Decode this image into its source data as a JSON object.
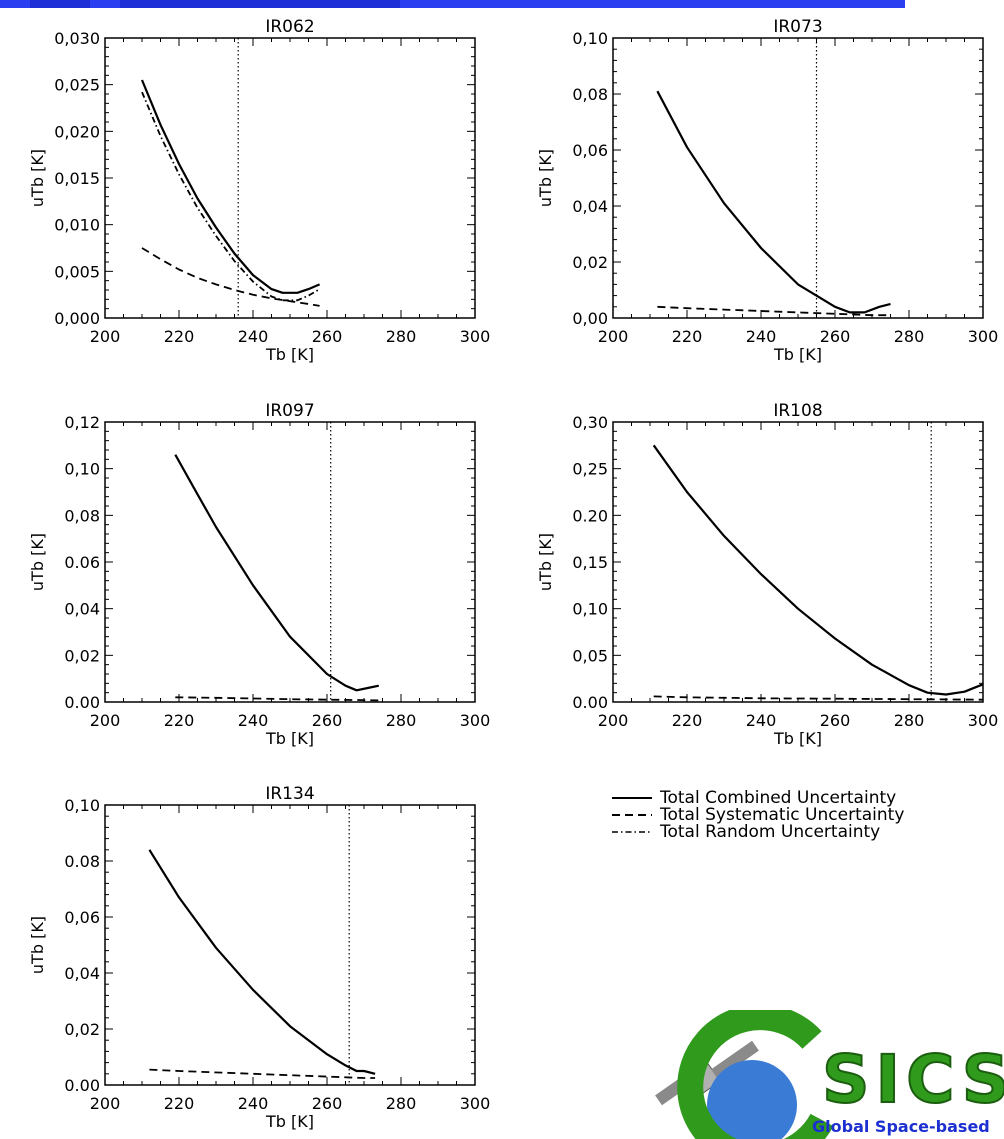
{
  "chart_data": [
    {
      "type": "line",
      "title": "IR062",
      "xlabel": "Tb [K]",
      "ylabel": "uTb [K]",
      "xlim": [
        200,
        300
      ],
      "ylim": [
        0,
        0.03
      ],
      "xticks": [
        "200",
        "220",
        "240",
        "260",
        "280",
        "300"
      ],
      "yticks": [
        "0,000",
        "0,005",
        "0,010",
        "0,015",
        "0,020",
        "0,025",
        "0,030"
      ],
      "vline": 236,
      "series": [
        {
          "style": "solid",
          "x": [
            210,
            215,
            220,
            225,
            230,
            235,
            240,
            245,
            248,
            252,
            255,
            258
          ],
          "y": [
            0.0255,
            0.0207,
            0.0165,
            0.0128,
            0.0097,
            0.0069,
            0.0046,
            0.0031,
            0.0027,
            0.0027,
            0.0031,
            0.0036
          ]
        },
        {
          "style": "dashed",
          "x": [
            210,
            215,
            220,
            225,
            230,
            235,
            240,
            245,
            250,
            255,
            258
          ],
          "y": [
            0.0075,
            0.0063,
            0.0052,
            0.0043,
            0.0036,
            0.003,
            0.0025,
            0.0021,
            0.0018,
            0.0015,
            0.0013
          ]
        },
        {
          "style": "dashdot",
          "x": [
            210,
            215,
            220,
            225,
            230,
            235,
            240,
            245,
            248,
            252,
            255,
            258
          ],
          "y": [
            0.0242,
            0.0195,
            0.0154,
            0.0118,
            0.0088,
            0.0061,
            0.0039,
            0.0023,
            0.0019,
            0.0019,
            0.0024,
            0.0031
          ]
        }
      ]
    },
    {
      "type": "line",
      "title": "IR073",
      "xlabel": "Tb [K]",
      "ylabel": "uTb [K]",
      "xlim": [
        200,
        300
      ],
      "ylim": [
        0,
        0.1
      ],
      "xticks": [
        "200",
        "220",
        "240",
        "260",
        "280",
        "300"
      ],
      "yticks": [
        "0,00",
        "0,02",
        "0,04",
        "0,06",
        "0,08",
        "0,10"
      ],
      "vline": 255,
      "series": [
        {
          "style": "solid",
          "x": [
            212,
            220,
            230,
            240,
            250,
            260,
            264,
            268,
            272,
            275
          ],
          "y": [
            0.081,
            0.061,
            0.041,
            0.025,
            0.012,
            0.004,
            0.002,
            0.002,
            0.004,
            0.005
          ]
        },
        {
          "style": "dashed",
          "x": [
            212,
            220,
            230,
            240,
            250,
            260,
            270,
            275
          ],
          "y": [
            0.004,
            0.0035,
            0.003,
            0.0025,
            0.002,
            0.0015,
            0.001,
            0.001
          ]
        }
      ]
    },
    {
      "type": "line",
      "title": "IR097",
      "xlabel": "Tb [K]",
      "ylabel": "uTb [K]",
      "xlim": [
        200,
        300
      ],
      "ylim": [
        0,
        0.12
      ],
      "xticks": [
        "200",
        "220",
        "240",
        "260",
        "280",
        "300"
      ],
      "yticks": [
        "0.00",
        "0,02",
        "0,04",
        "0.06",
        "0,08",
        "0,10",
        "0,12"
      ],
      "vline": 261,
      "series": [
        {
          "style": "solid",
          "x": [
            219,
            225,
            230,
            240,
            250,
            260,
            265,
            268,
            271,
            274
          ],
          "y": [
            0.106,
            0.089,
            0.075,
            0.05,
            0.028,
            0.012,
            0.007,
            0.005,
            0.006,
            0.007
          ]
        },
        {
          "style": "dashed",
          "x": [
            219,
            230,
            240,
            250,
            260,
            270,
            274
          ],
          "y": [
            0.002,
            0.0018,
            0.0015,
            0.0012,
            0.001,
            0.0008,
            0.0007
          ]
        }
      ]
    },
    {
      "type": "line",
      "title": "IR108",
      "xlabel": "Tb [K]",
      "ylabel": "uTb [K]",
      "xlim": [
        200,
        300
      ],
      "ylim": [
        0,
        0.3
      ],
      "xticks": [
        "200",
        "220",
        "240",
        "260",
        "280",
        "300"
      ],
      "yticks": [
        "0.00",
        "0,05",
        "0,10",
        "0,15",
        "0.20",
        "0,25",
        "0,30"
      ],
      "vline": 286,
      "series": [
        {
          "style": "solid",
          "x": [
            211,
            220,
            230,
            240,
            250,
            260,
            270,
            280,
            285,
            290,
            295,
            300
          ],
          "y": [
            0.275,
            0.225,
            0.178,
            0.137,
            0.1,
            0.068,
            0.04,
            0.018,
            0.01,
            0.008,
            0.011,
            0.019
          ]
        },
        {
          "style": "dashed",
          "x": [
            211,
            220,
            240,
            260,
            280,
            300
          ],
          "y": [
            0.006,
            0.005,
            0.004,
            0.0035,
            0.003,
            0.0025
          ]
        }
      ]
    },
    {
      "type": "line",
      "title": "IR134",
      "xlabel": "Tb [K]",
      "ylabel": "uTb [K]",
      "xlim": [
        200,
        300
      ],
      "ylim": [
        0,
        0.1
      ],
      "xticks": [
        "200",
        "220",
        "240",
        "260",
        "280",
        "300"
      ],
      "yticks": [
        "0.00",
        "0,02",
        "0,04",
        "0,06",
        "0.08",
        "0,10"
      ],
      "vline": 266,
      "series": [
        {
          "style": "solid",
          "x": [
            212,
            220,
            230,
            240,
            250,
            260,
            265,
            268,
            270,
            273
          ],
          "y": [
            0.084,
            0.067,
            0.049,
            0.034,
            0.021,
            0.011,
            0.007,
            0.005,
            0.005,
            0.004
          ]
        },
        {
          "style": "dashed",
          "x": [
            212,
            220,
            240,
            260,
            270,
            273
          ],
          "y": [
            0.0055,
            0.005,
            0.004,
            0.003,
            0.0025,
            0.0025
          ]
        }
      ]
    }
  ],
  "legend": [
    {
      "style": "solid",
      "label": "Total  Combined  Uncertainty"
    },
    {
      "style": "dashed",
      "label": "Total  Systematic  Uncertainty"
    },
    {
      "style": "dashdot",
      "label": "Total  Random  Uncertainty"
    }
  ],
  "logo": {
    "text": "SICS",
    "tagline": "Global Space-based"
  },
  "colors": {
    "bar": "#2a3ff0",
    "logo_green": "#2f9a1c",
    "logo_blue": "#1c2fd0",
    "line": "#000000"
  }
}
